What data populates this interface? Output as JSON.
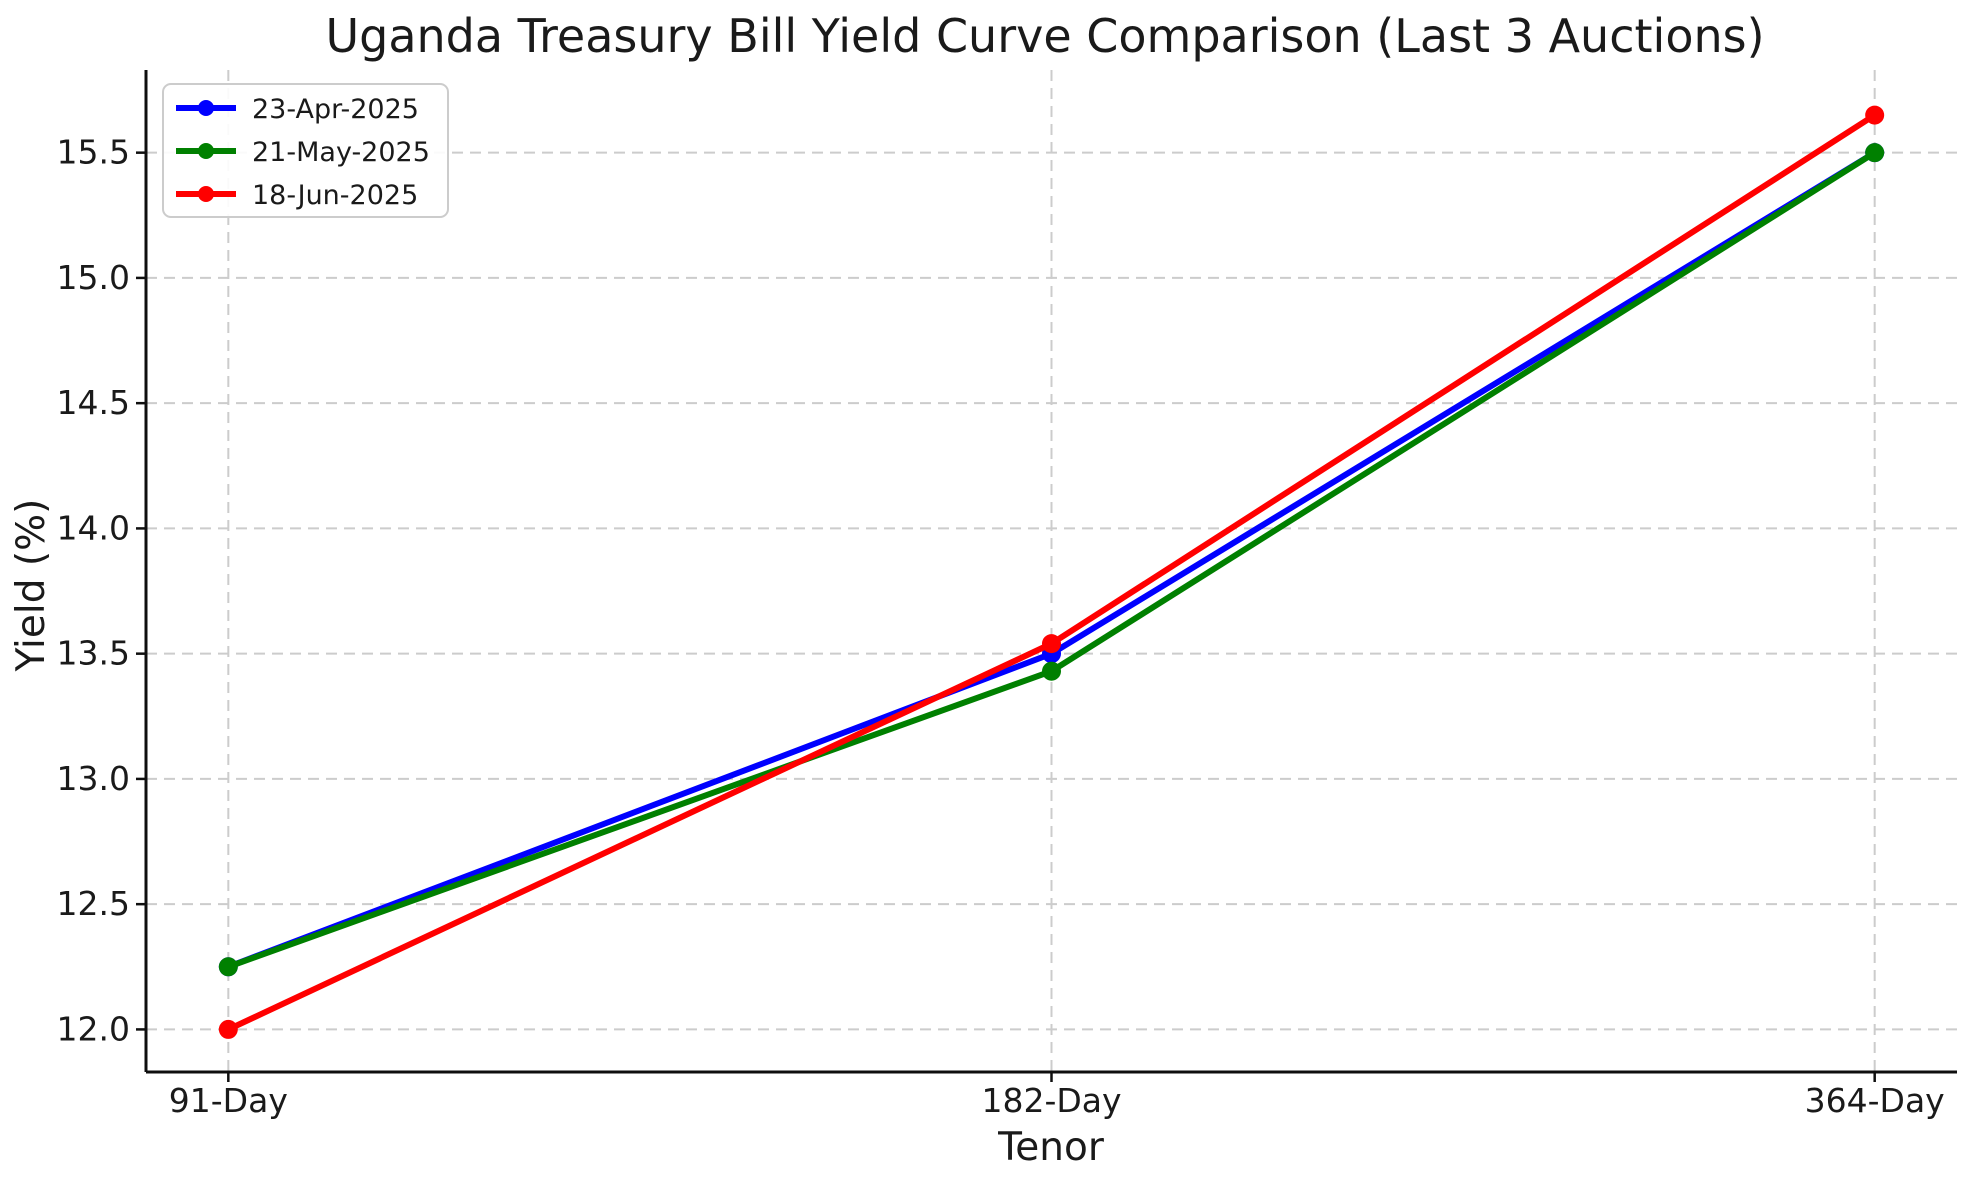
{
  "chart_data": {
    "type": "line",
    "title": "Uganda Treasury Bill Yield Curve Comparison (Last 3 Auctions)",
    "xlabel": "Tenor",
    "ylabel": "Yield (%)",
    "categories": [
      "91-Day",
      "182-Day",
      "364-Day"
    ],
    "series": [
      {
        "name": "23-Apr-2025",
        "color": "#0000FF",
        "values": [
          12.25,
          13.5,
          15.5
        ]
      },
      {
        "name": "21-May-2025",
        "color": "#008000",
        "values": [
          12.25,
          13.43,
          15.5
        ]
      },
      {
        "name": "18-Jun-2025",
        "color": "#FF0000",
        "values": [
          12.0,
          13.54,
          15.65
        ]
      }
    ],
    "yticks": [
      12.0,
      12.5,
      13.0,
      13.5,
      14.0,
      14.5,
      15.0,
      15.5
    ],
    "ylim": [
      11.83,
      15.83
    ],
    "xlim": [
      -0.1,
      2.1
    ],
    "grid": true,
    "grid_style": "dashed",
    "legend_position": "upper-left",
    "colors": {
      "grid": "#cccccc",
      "axis": "#0f0f0f",
      "text": "#1a1a1a",
      "legend_border": "#cccccc",
      "background": "#ffffff"
    }
  }
}
